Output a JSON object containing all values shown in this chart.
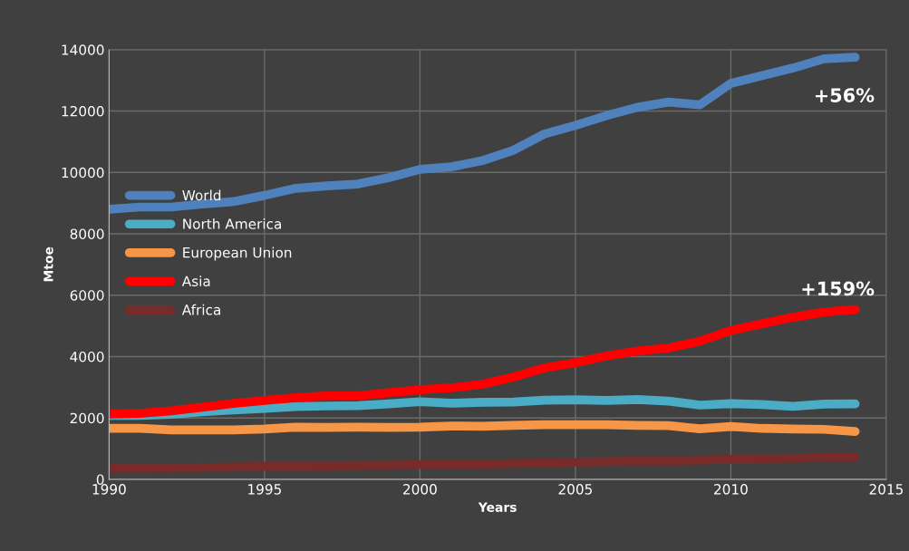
{
  "chart_data": {
    "type": "line",
    "xlabel": "Years",
    "ylabel": "Mtoe",
    "x": [
      1990,
      1991,
      1992,
      1993,
      1994,
      1995,
      1996,
      1997,
      1998,
      1999,
      2000,
      2001,
      2002,
      2003,
      2004,
      2005,
      2006,
      2007,
      2008,
      2009,
      2010,
      2011,
      2012,
      2013,
      2014
    ],
    "series": [
      {
        "name": "World",
        "color": "#4f81bd",
        "values": [
          8800,
          8870,
          8870,
          8970,
          9050,
          9250,
          9480,
          9560,
          9620,
          9830,
          10100,
          10180,
          10380,
          10720,
          11250,
          11530,
          11850,
          12120,
          12290,
          12200,
          12900,
          13150,
          13400,
          13700,
          13750
        ]
      },
      {
        "name": "North America",
        "color": "#4bacc6",
        "values": [
          2080,
          2080,
          2120,
          2200,
          2260,
          2310,
          2370,
          2390,
          2400,
          2460,
          2530,
          2480,
          2510,
          2520,
          2580,
          2590,
          2570,
          2600,
          2550,
          2420,
          2470,
          2440,
          2380,
          2450,
          2460
        ]
      },
      {
        "name": "European Union",
        "color": "#f79646",
        "values": [
          1660,
          1660,
          1610,
          1610,
          1610,
          1640,
          1700,
          1690,
          1700,
          1690,
          1700,
          1740,
          1730,
          1760,
          1780,
          1780,
          1780,
          1760,
          1750,
          1650,
          1720,
          1660,
          1640,
          1630,
          1560
        ]
      },
      {
        "name": "Asia",
        "color": "#ff0000",
        "values": [
          2130,
          2150,
          2230,
          2350,
          2470,
          2570,
          2660,
          2720,
          2720,
          2820,
          2920,
          2980,
          3100,
          3330,
          3630,
          3800,
          4020,
          4180,
          4280,
          4500,
          4850,
          5070,
          5280,
          5450,
          5530
        ]
      },
      {
        "name": "Africa",
        "color": "#772c2a",
        "values": [
          370,
          370,
          380,
          390,
          400,
          420,
          430,
          440,
          450,
          460,
          480,
          490,
          500,
          520,
          540,
          560,
          580,
          600,
          610,
          630,
          650,
          670,
          690,
          710,
          720
        ]
      }
    ],
    "annotations": [
      "+56%",
      "+159%"
    ],
    "xlim": [
      1990,
      2015
    ],
    "xticks": [
      1990,
      1995,
      2000,
      2005,
      2010,
      2015
    ],
    "ylim": [
      0,
      14000
    ],
    "yticks": [
      0,
      2000,
      4000,
      6000,
      8000,
      10000,
      12000,
      14000
    ],
    "grid": true,
    "legend": "center left",
    "marker": "none",
    "line_style": "solid"
  }
}
